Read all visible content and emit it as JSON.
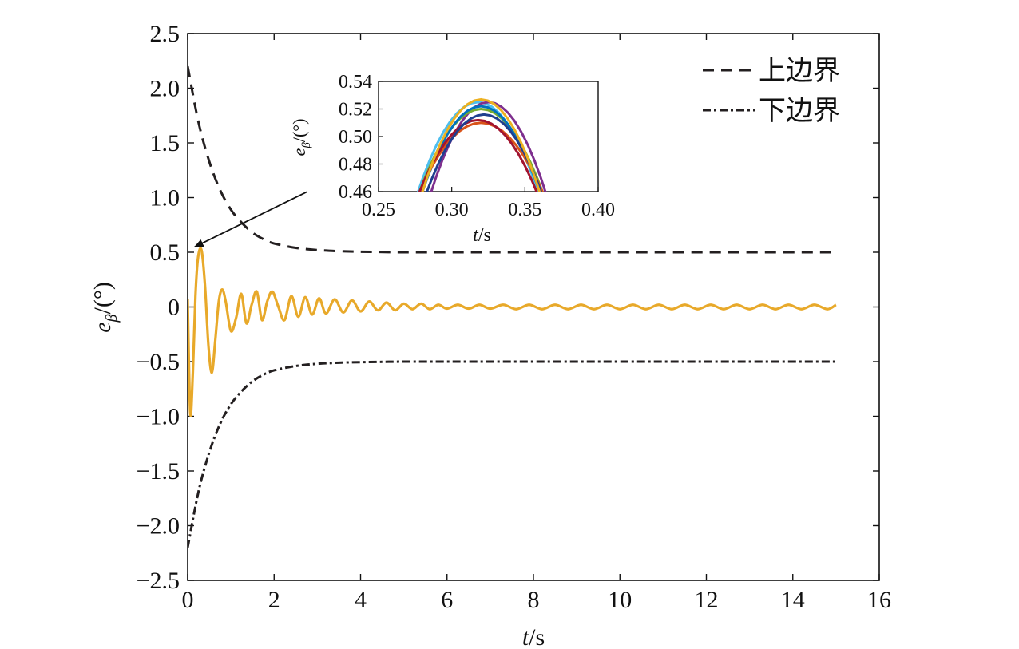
{
  "chart_data": [
    {
      "type": "line",
      "title": "",
      "xlabel": "t/s",
      "ylabel": "e_β/(°)",
      "xlim": [
        0,
        16
      ],
      "ylim": [
        -2.5,
        2.5
      ],
      "xticks": [
        "0",
        "2",
        "4",
        "6",
        "8",
        "10",
        "12",
        "14",
        "16"
      ],
      "yticks": [
        "2.5",
        "2.0",
        "1.5",
        "1.0",
        "0.5",
        "0",
        "-0.5",
        "-1.0",
        "-1.5",
        "-2.0",
        "-2.5"
      ],
      "grid": false,
      "legend_position": "top-right",
      "series": [
        {
          "name": "上边界",
          "style": "dashed",
          "color": "#231f20",
          "x": [
            0,
            0.25,
            0.5,
            0.75,
            1.0,
            1.25,
            1.5,
            1.75,
            2.0,
            2.5,
            3.0,
            3.5,
            4.0,
            5.0,
            6.0,
            8.0,
            10.0,
            12.0,
            15.0
          ],
          "y": [
            2.2,
            1.69,
            1.33,
            1.07,
            0.89,
            0.77,
            0.68,
            0.62,
            0.58,
            0.54,
            0.52,
            0.51,
            0.505,
            0.5,
            0.5,
            0.5,
            0.5,
            0.5,
            0.5
          ]
        },
        {
          "name": "下边界",
          "style": "dash-dot",
          "color": "#231f20",
          "x": [
            0,
            0.25,
            0.5,
            0.75,
            1.0,
            1.25,
            1.5,
            1.75,
            2.0,
            2.5,
            3.0,
            3.5,
            4.0,
            5.0,
            6.0,
            8.0,
            10.0,
            12.0,
            15.0
          ],
          "y": [
            -2.2,
            -1.69,
            -1.33,
            -1.07,
            -0.89,
            -0.77,
            -0.68,
            -0.62,
            -0.58,
            -0.54,
            -0.52,
            -0.51,
            -0.505,
            -0.5,
            -0.5,
            -0.5,
            -0.5,
            -0.5,
            -0.5
          ]
        },
        {
          "name": "",
          "style": "solid",
          "color": "#e8a92a",
          "x": [
            0,
            0.06,
            0.12,
            0.18,
            0.24,
            0.32,
            0.4,
            0.48,
            0.56,
            0.64,
            0.72,
            0.8,
            0.88,
            1.0,
            1.12,
            1.24,
            1.36,
            1.48,
            1.6,
            1.72,
            1.84,
            1.96,
            2.1,
            2.24,
            2.4,
            2.56,
            2.72,
            2.88,
            3.04,
            3.2,
            3.4,
            3.6,
            3.8,
            4.0,
            4.2,
            4.4,
            4.6,
            4.8,
            5.0,
            5.2,
            5.4,
            5.6,
            5.8,
            6.0,
            6.25,
            6.5,
            6.75,
            7.0,
            7.3,
            7.6,
            7.9,
            8.2,
            8.5,
            8.8,
            9.1,
            9.4,
            9.7,
            10.0,
            10.3,
            10.6,
            10.9,
            11.2,
            11.5,
            11.8,
            12.1,
            12.4,
            12.7,
            13.0,
            13.3,
            13.6,
            13.9,
            14.2,
            14.5,
            14.8,
            15.0
          ],
          "y": [
            0.07,
            -0.97,
            -0.6,
            0.1,
            0.45,
            0.52,
            0.2,
            -0.35,
            -0.6,
            -0.3,
            0.05,
            0.16,
            0.05,
            -0.22,
            -0.1,
            0.12,
            -0.15,
            0.02,
            0.14,
            -0.12,
            0.05,
            0.14,
            0.0,
            -0.12,
            0.1,
            -0.09,
            0.09,
            -0.07,
            0.08,
            -0.06,
            0.07,
            -0.05,
            0.06,
            -0.04,
            0.05,
            -0.03,
            0.04,
            -0.03,
            0.03,
            -0.02,
            0.03,
            -0.02,
            0.02,
            -0.015,
            0.02,
            -0.015,
            0.02,
            -0.015,
            0.02,
            -0.02,
            0.02,
            -0.02,
            0.02,
            -0.02,
            0.02,
            -0.02,
            0.02,
            -0.02,
            0.02,
            -0.02,
            0.02,
            -0.02,
            0.02,
            -0.02,
            0.02,
            -0.02,
            0.02,
            -0.02,
            0.02,
            -0.02,
            0.02,
            -0.02,
            0.02,
            -0.02,
            0.02
          ]
        }
      ],
      "annotations": [
        {
          "type": "arrow",
          "from_inset": true,
          "to": {
            "x": 0.9,
            "y": 0.52
          }
        }
      ]
    },
    {
      "type": "line",
      "title": "",
      "xlabel": "t/s",
      "ylabel": "e_β/(°)",
      "xlim": [
        0.25,
        0.4
      ],
      "ylim": [
        0.46,
        0.54
      ],
      "xticks": [
        "0.25",
        "0.30",
        "0.35",
        "0.40"
      ],
      "yticks": [
        "0.54",
        "0.52",
        "0.50",
        "0.48",
        "0.46"
      ],
      "grid": false,
      "series_peaks": [
        {
          "color": "#4dbeee",
          "peak_x": 0.318,
          "peak_y": 0.525,
          "half_width": 0.041
        },
        {
          "color": "#7e2f8e",
          "peak_x": 0.325,
          "peak_y": 0.525,
          "half_width": 0.039
        },
        {
          "color": "#77ac30",
          "peak_x": 0.32,
          "peak_y": 0.52,
          "half_width": 0.042
        },
        {
          "color": "#0072bd",
          "peak_x": 0.32,
          "peak_y": 0.522,
          "half_width": 0.04
        },
        {
          "color": "#d95319",
          "peak_x": 0.32,
          "peak_y": 0.51,
          "half_width": 0.042
        },
        {
          "color": "#a2142f",
          "peak_x": 0.318,
          "peak_y": 0.512,
          "half_width": 0.04
        },
        {
          "color": "#1f3f8f",
          "peak_x": 0.322,
          "peak_y": 0.516,
          "half_width": 0.039
        },
        {
          "color": "#edb120",
          "peak_x": 0.32,
          "peak_y": 0.527,
          "half_width": 0.04
        }
      ]
    }
  ]
}
